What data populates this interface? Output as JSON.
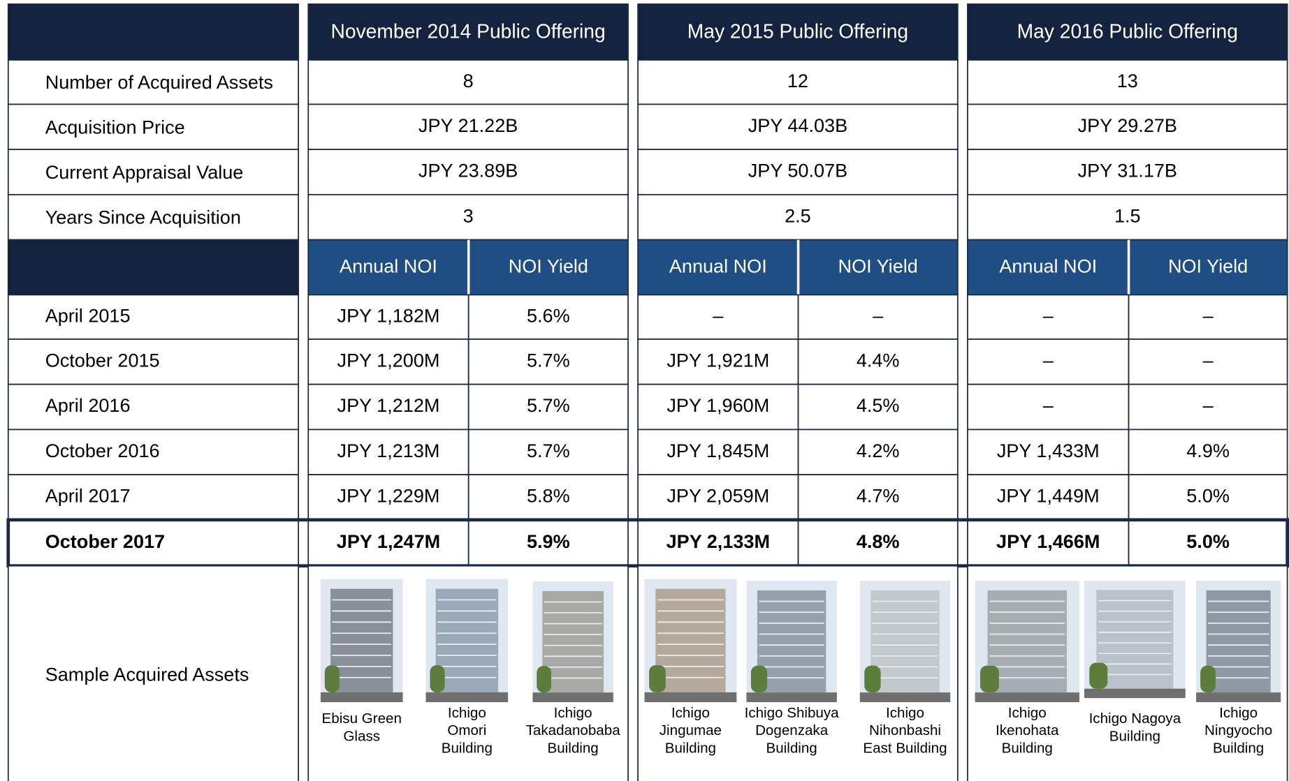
{
  "header": {
    "columns": [
      "November 2014 Public Offering",
      "May 2015 Public Offering",
      "May 2016 Public Offering"
    ]
  },
  "summary_rows": [
    {
      "label": "Number of Acquired Assets",
      "values": [
        "8",
        "12",
        "13"
      ]
    },
    {
      "label": "Acquisition Price",
      "values": [
        "JPY 21.22B",
        "JPY 44.03B",
        "JPY 29.27B"
      ]
    },
    {
      "label": "Current Appraisal Value",
      "values": [
        "JPY 23.89B",
        "JPY 50.07B",
        "JPY 31.17B"
      ]
    },
    {
      "label": "Years Since Acquisition",
      "values": [
        "3",
        "2.5",
        "1.5"
      ]
    }
  ],
  "subheaders": [
    [
      "Annual NOI",
      "NOI Yield"
    ],
    [
      "Annual NOI",
      "NOI Yield"
    ],
    [
      "Annual NOI",
      "NOI Yield"
    ]
  ],
  "noi_rows": [
    {
      "label": "April 2015",
      "values": [
        "JPY 1,182M",
        "5.6%",
        "–",
        "–",
        "–",
        "–"
      ]
    },
    {
      "label": "October 2015",
      "values": [
        "JPY 1,200M",
        "5.7%",
        "JPY 1,921M",
        "4.4%",
        "–",
        "–"
      ]
    },
    {
      "label": "April 2016",
      "values": [
        "JPY 1,212M",
        "5.7%",
        "JPY 1,960M",
        "4.5%",
        "–",
        "–"
      ]
    },
    {
      "label": "October 2016",
      "values": [
        "JPY 1,213M",
        "5.7%",
        "JPY 1,845M",
        "4.2%",
        "JPY 1,433M",
        "4.9%"
      ]
    },
    {
      "label": "April 2017",
      "values": [
        "JPY 1,229M",
        "5.8%",
        "JPY 2,059M",
        "4.7%",
        "JPY 1,449M",
        "5.0%"
      ]
    },
    {
      "label": "October 2017",
      "values": [
        "JPY 1,247M",
        "5.9%",
        "JPY 2,133M",
        "4.8%",
        "JPY 1,466M",
        "5.0%"
      ]
    }
  ],
  "sample_row": {
    "label": "Sample Acquired Assets",
    "assets": [
      [
        [
          "Ebisu Green",
          "Glass"
        ],
        [
          "Ichigo",
          "Omori",
          "Building"
        ],
        [
          "Ichigo",
          "Takadanobaba",
          "Building"
        ]
      ],
      [
        [
          "Ichigo",
          "Jingumae",
          "Building"
        ],
        [
          "Ichigo Shibuya",
          "Dogenzaka",
          "Building"
        ],
        [
          "Ichigo",
          "Nihonbashi",
          "East Building"
        ]
      ],
      [
        [
          "Ichigo",
          "Ikenohata",
          "Building"
        ],
        [
          "Ichigo Nagoya",
          "Building"
        ],
        [
          "Ichigo",
          "Ningyocho",
          "Building"
        ]
      ]
    ]
  }
}
